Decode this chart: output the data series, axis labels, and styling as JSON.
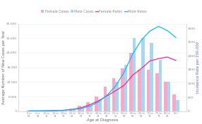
{
  "age_labels": [
    "0 to\n04",
    "5 to\n09",
    "10 to\n14",
    "15 to\n19",
    "20 to\n24",
    "25 to\n29",
    "30 to\n34",
    "35 to\n39",
    "40 to\n44",
    "45 to\n49",
    "50 to\n54",
    "55 to\n59",
    "60 to\n64",
    "65 to\n69",
    "70 to\n74",
    "75 to\n79",
    "80 to\n84",
    "85+"
  ],
  "female_cases": [
    80,
    80,
    130,
    250,
    500,
    1000,
    2200,
    3800,
    6000,
    10000,
    13500,
    17500,
    24000,
    17000,
    17000,
    15500,
    12000,
    7000
  ],
  "male_cases": [
    100,
    120,
    170,
    280,
    420,
    750,
    1300,
    2200,
    4500,
    7000,
    12000,
    19000,
    30000,
    30000,
    28000,
    21000,
    12000,
    4500
  ],
  "female_rates": [
    8,
    9,
    12,
    20,
    38,
    75,
    145,
    270,
    440,
    660,
    880,
    1120,
    1560,
    1850,
    2180,
    2280,
    2350,
    2200
  ],
  "male_rates": [
    12,
    14,
    18,
    28,
    38,
    65,
    115,
    210,
    390,
    680,
    1080,
    1680,
    2480,
    3080,
    3480,
    3680,
    3500,
    3200
  ],
  "female_bar_color": "#F9A8C9",
  "male_bar_color": "#A8D8F0",
  "female_line_color": "#FF2090",
  "male_line_color": "#00BFFF",
  "ylabel_left": "Average Number of New Cases per Year",
  "ylabel_right": "Incidence Rate per 200,000",
  "xlabel": "Age at Diagnosis",
  "ylim_left": [
    0,
    36000
  ],
  "ylim_right": [
    0,
    3800
  ],
  "yticks_left": [
    0,
    6000,
    12000,
    18000,
    24000,
    30000,
    36000
  ],
  "yticks_right": [
    0,
    600,
    1200,
    1800,
    2400,
    3000,
    3600
  ],
  "legend_labels": [
    "Female Cases",
    "Male Cases",
    "Female Rates",
    "Male Rates"
  ],
  "axis_fontsize": 3.8,
  "tick_fontsize": 3.2,
  "legend_fontsize": 3.5
}
